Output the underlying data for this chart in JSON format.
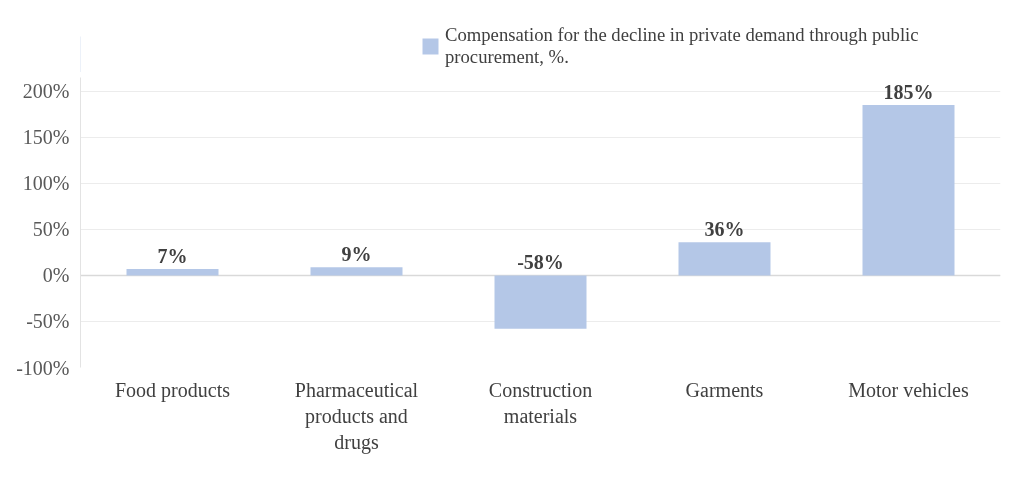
{
  "chart_data": {
    "type": "bar",
    "categories": [
      "Food products",
      "Pharmaceutical products and drugs",
      "Construction materials",
      "Garments",
      "Motor vehicles"
    ],
    "series": [
      {
        "name": "Compensation for the decline in private demand through public procurement, %.",
        "color": "#b4c7e7",
        "values": [
          7,
          9,
          -58,
          36,
          185
        ]
      }
    ],
    "value_labels": [
      "7%",
      "9%",
      "-58%",
      "36%",
      "185%"
    ],
    "ylim": [
      -100,
      215
    ],
    "yticks": [
      {
        "value": -100,
        "label": "-100%"
      },
      {
        "value": -50,
        "label": "-50%"
      },
      {
        "value": 0,
        "label": "0%"
      },
      {
        "value": 50,
        "label": "50%"
      },
      {
        "value": 100,
        "label": "100%"
      },
      {
        "value": 150,
        "label": "150%"
      },
      {
        "value": 200,
        "label": "200%"
      }
    ],
    "grid": "y",
    "legend": "top right"
  }
}
